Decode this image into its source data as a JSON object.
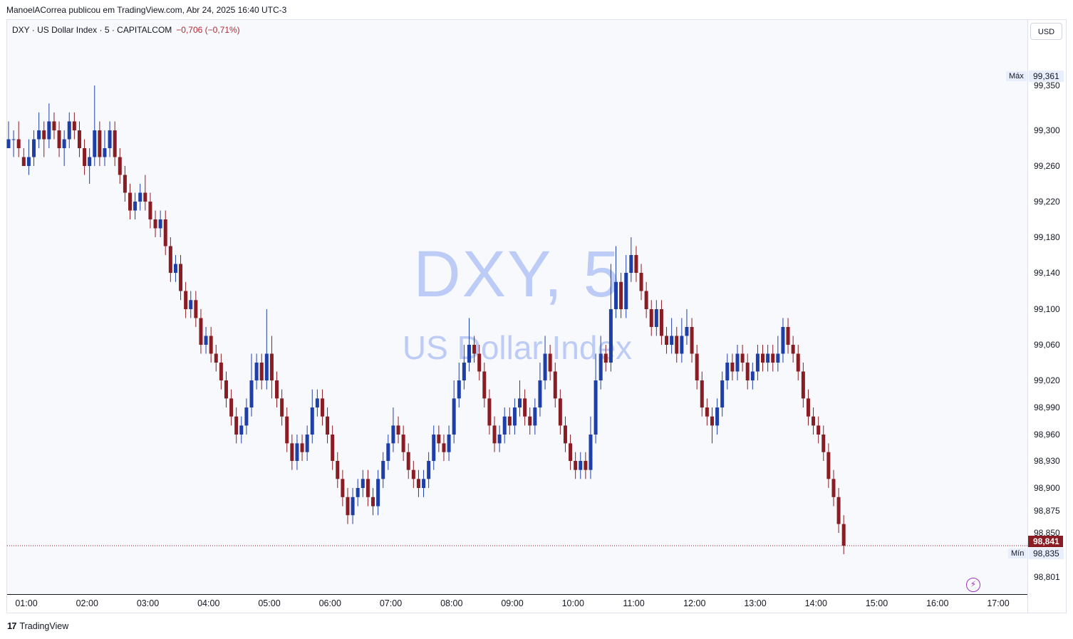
{
  "header": {
    "caption": "ManoelACorrea publicou em TradingView.com, Abr 24, 2025 16:40 UTC-3"
  },
  "legend": {
    "symbol": "DXY · US Dollar Index · 5 · CAPITALCOM",
    "change": "−0,706 (−0,71%)"
  },
  "watermark": {
    "line1": "DXY, 5",
    "line2": "US Dollar Index"
  },
  "price_scale": {
    "currency_button": "USD",
    "max_tag": "Máx",
    "max_value": "99,361",
    "min_tag": "Mín",
    "min_value": "98,835",
    "last_value": "98,841"
  },
  "footer": {
    "brand": "TradingView"
  },
  "colors": {
    "up": "#1f3fa8",
    "down": "#8a1c23",
    "watermark": "#bcccf6",
    "marker": "#a233c2"
  },
  "icons": {
    "lightning": "lightning-icon",
    "brand_logo": "tradingview-logo-icon"
  },
  "chart_data": {
    "type": "candlestick",
    "symbol": "DXY",
    "interval": "5",
    "y_ticks": [
      "99,361",
      "99,350",
      "99,300",
      "99,260",
      "99,220",
      "99,180",
      "99,140",
      "99,100",
      "99,060",
      "99,020",
      "98,990",
      "98,960",
      "98,930",
      "98,900",
      "98,875",
      "98,850",
      "98,835",
      "98,801"
    ],
    "x_ticks": [
      "01:00",
      "02:00",
      "03:00",
      "04:00",
      "05:00",
      "06:00",
      "07:00",
      "08:00",
      "09:00",
      "10:00",
      "11:00",
      "12:00",
      "13:00",
      "14:00",
      "15:00",
      "16:00",
      "17:00"
    ],
    "last_price": 98.841,
    "high": 99.361,
    "low": 98.835,
    "shape": [
      [
        99.28,
        99.29,
        99.31,
        99.29
      ],
      [
        99.29,
        99.29,
        99.3,
        99.27
      ],
      [
        99.29,
        99.28,
        99.31,
        99.27
      ],
      [
        99.27,
        99.26,
        99.28,
        99.26
      ],
      [
        99.26,
        99.27,
        99.29,
        99.25
      ],
      [
        99.27,
        99.29,
        99.3,
        99.26
      ],
      [
        99.29,
        99.3,
        99.32,
        99.28
      ],
      [
        99.3,
        99.29,
        99.31,
        99.27
      ],
      [
        99.29,
        99.31,
        99.33,
        99.28
      ],
      [
        99.31,
        99.3,
        99.32,
        99.29
      ],
      [
        99.3,
        99.28,
        99.31,
        99.27
      ],
      [
        99.28,
        99.29,
        99.3,
        99.26
      ],
      [
        99.29,
        99.31,
        99.32,
        99.28
      ],
      [
        99.31,
        99.3,
        99.32,
        99.29
      ],
      [
        99.3,
        99.28,
        99.31,
        99.27
      ],
      [
        99.28,
        99.26,
        99.29,
        99.25
      ],
      [
        99.26,
        99.27,
        99.28,
        99.24
      ],
      [
        99.27,
        99.3,
        99.35,
        99.26
      ],
      [
        99.3,
        99.27,
        99.31,
        99.26
      ],
      [
        99.27,
        99.28,
        99.3,
        99.26
      ],
      [
        99.28,
        99.3,
        99.31,
        99.27
      ],
      [
        99.3,
        99.27,
        99.31,
        99.26
      ],
      [
        99.27,
        99.25,
        99.28,
        99.24
      ],
      [
        99.25,
        99.23,
        99.26,
        99.22
      ],
      [
        99.23,
        99.21,
        99.24,
        99.2
      ],
      [
        99.21,
        99.22,
        99.23,
        99.2
      ],
      [
        99.22,
        99.23,
        99.24,
        99.21
      ],
      [
        99.23,
        99.22,
        99.25,
        99.21
      ],
      [
        99.22,
        99.2,
        99.23,
        99.19
      ],
      [
        99.2,
        99.19,
        99.21,
        99.18
      ],
      [
        99.19,
        99.2,
        99.21,
        99.18
      ],
      [
        99.2,
        99.17,
        99.21,
        99.16
      ],
      [
        99.17,
        99.14,
        99.18,
        99.13
      ],
      [
        99.14,
        99.15,
        99.16,
        99.13
      ],
      [
        99.15,
        99.12,
        99.16,
        99.11
      ],
      [
        99.12,
        99.1,
        99.13,
        99.09
      ],
      [
        99.1,
        99.11,
        99.12,
        99.09
      ],
      [
        99.11,
        99.09,
        99.12,
        99.08
      ],
      [
        99.09,
        99.06,
        99.1,
        99.05
      ],
      [
        99.06,
        99.07,
        99.08,
        99.05
      ],
      [
        99.07,
        99.05,
        99.08,
        99.04
      ],
      [
        99.05,
        99.04,
        99.06,
        99.03
      ],
      [
        99.04,
        99.02,
        99.05,
        99.01
      ],
      [
        99.02,
        99.0,
        99.03,
        98.99
      ],
      [
        99.0,
        98.98,
        99.01,
        98.97
      ],
      [
        98.98,
        98.96,
        98.99,
        98.95
      ],
      [
        98.96,
        98.97,
        98.98,
        98.95
      ],
      [
        98.97,
        98.99,
        99.0,
        98.96
      ],
      [
        98.99,
        99.02,
        99.05,
        98.98
      ],
      [
        99.02,
        99.04,
        99.05,
        99.01
      ],
      [
        99.04,
        99.02,
        99.05,
        99.01
      ],
      [
        99.02,
        99.05,
        99.1,
        99.01
      ],
      [
        99.05,
        99.02,
        99.07,
        99.0
      ],
      [
        99.02,
        99.0,
        99.03,
        98.99
      ],
      [
        99.0,
        98.98,
        99.01,
        98.97
      ],
      [
        98.98,
        98.95,
        98.99,
        98.94
      ],
      [
        98.95,
        98.93,
        98.96,
        98.92
      ],
      [
        98.93,
        98.95,
        98.96,
        98.92
      ],
      [
        98.95,
        98.94,
        98.96,
        98.93
      ],
      [
        98.94,
        98.96,
        98.97,
        98.93
      ],
      [
        98.96,
        98.99,
        99.01,
        98.95
      ],
      [
        98.99,
        99.0,
        99.01,
        98.98
      ],
      [
        99.0,
        98.98,
        99.01,
        98.97
      ],
      [
        98.98,
        98.96,
        98.99,
        98.95
      ],
      [
        98.96,
        98.93,
        98.97,
        98.92
      ],
      [
        98.93,
        98.91,
        98.94,
        98.9
      ],
      [
        98.91,
        98.89,
        98.92,
        98.88
      ],
      [
        98.89,
        98.87,
        98.9,
        98.86
      ],
      [
        98.87,
        98.89,
        98.9,
        98.86
      ],
      [
        98.89,
        98.9,
        98.91,
        98.88
      ],
      [
        98.9,
        98.91,
        98.92,
        98.89
      ],
      [
        98.91,
        98.89,
        98.92,
        98.88
      ],
      [
        98.89,
        98.88,
        98.9,
        98.87
      ],
      [
        98.88,
        98.91,
        98.92,
        98.87
      ],
      [
        98.91,
        98.93,
        98.94,
        98.9
      ],
      [
        98.93,
        98.95,
        98.96,
        98.92
      ],
      [
        98.95,
        98.97,
        98.99,
        98.94
      ],
      [
        98.97,
        98.96,
        98.98,
        98.95
      ],
      [
        98.96,
        98.94,
        98.97,
        98.93
      ],
      [
        98.94,
        98.92,
        98.95,
        98.91
      ],
      [
        98.92,
        98.91,
        98.93,
        98.9
      ],
      [
        98.91,
        98.9,
        98.92,
        98.89
      ],
      [
        98.9,
        98.91,
        98.92,
        98.89
      ],
      [
        98.91,
        98.93,
        98.94,
        98.9
      ],
      [
        98.93,
        98.96,
        98.97,
        98.92
      ],
      [
        98.96,
        98.95,
        98.97,
        98.94
      ],
      [
        98.95,
        98.94,
        98.96,
        98.93
      ],
      [
        98.94,
        98.96,
        98.97,
        98.93
      ],
      [
        98.96,
        99.0,
        99.02,
        98.95
      ],
      [
        99.0,
        99.02,
        99.04,
        98.99
      ],
      [
        99.02,
        99.04,
        99.06,
        99.01
      ],
      [
        99.04,
        99.06,
        99.09,
        99.03
      ],
      [
        99.06,
        99.05,
        99.07,
        99.04
      ],
      [
        99.05,
        99.03,
        99.06,
        99.02
      ],
      [
        99.03,
        99.0,
        99.04,
        98.99
      ],
      [
        99.0,
        98.97,
        99.01,
        98.96
      ],
      [
        98.97,
        98.95,
        98.98,
        98.94
      ],
      [
        98.95,
        98.96,
        98.97,
        98.94
      ],
      [
        98.96,
        98.98,
        98.99,
        98.95
      ],
      [
        98.98,
        98.97,
        98.99,
        98.96
      ],
      [
        98.97,
        98.99,
        99.0,
        98.96
      ],
      [
        98.99,
        99.0,
        99.02,
        98.98
      ],
      [
        99.0,
        98.98,
        99.01,
        98.97
      ],
      [
        98.98,
        98.97,
        98.99,
        98.96
      ],
      [
        98.97,
        98.99,
        99.0,
        98.96
      ],
      [
        98.99,
        99.02,
        99.04,
        98.98
      ],
      [
        99.02,
        99.05,
        99.07,
        99.01
      ],
      [
        99.05,
        99.03,
        99.06,
        99.02
      ],
      [
        99.03,
        99.0,
        99.04,
        98.99
      ],
      [
        99.0,
        98.97,
        99.01,
        98.96
      ],
      [
        98.97,
        98.95,
        98.98,
        98.94
      ],
      [
        98.95,
        98.93,
        98.96,
        98.92
      ],
      [
        98.93,
        98.92,
        98.94,
        98.91
      ],
      [
        98.92,
        98.93,
        98.94,
        98.91
      ],
      [
        98.93,
        98.92,
        98.94,
        98.91
      ],
      [
        98.92,
        98.96,
        98.98,
        98.91
      ],
      [
        98.96,
        99.02,
        99.05,
        98.95
      ],
      [
        99.02,
        99.05,
        99.07,
        99.01
      ],
      [
        99.05,
        99.04,
        99.06,
        99.03
      ],
      [
        99.04,
        99.1,
        99.15,
        99.03
      ],
      [
        99.1,
        99.13,
        99.17,
        99.09
      ],
      [
        99.13,
        99.1,
        99.14,
        99.09
      ],
      [
        99.1,
        99.14,
        99.16,
        99.09
      ],
      [
        99.14,
        99.16,
        99.18,
        99.13
      ],
      [
        99.16,
        99.14,
        99.17,
        99.13
      ],
      [
        99.14,
        99.12,
        99.15,
        99.11
      ],
      [
        99.12,
        99.1,
        99.13,
        99.09
      ],
      [
        99.1,
        99.08,
        99.11,
        99.07
      ],
      [
        99.08,
        99.1,
        99.11,
        99.07
      ],
      [
        99.1,
        99.07,
        99.11,
        99.06
      ],
      [
        99.07,
        99.06,
        99.08,
        99.05
      ],
      [
        99.06,
        99.07,
        99.09,
        99.05
      ],
      [
        99.07,
        99.05,
        99.08,
        99.04
      ],
      [
        99.05,
        99.07,
        99.09,
        99.04
      ],
      [
        99.07,
        99.08,
        99.1,
        99.06
      ],
      [
        99.08,
        99.05,
        99.09,
        99.04
      ],
      [
        99.05,
        99.02,
        99.06,
        99.01
      ],
      [
        99.02,
        98.99,
        99.03,
        98.98
      ],
      [
        98.99,
        98.98,
        99.0,
        98.97
      ],
      [
        98.98,
        98.97,
        98.99,
        98.95
      ],
      [
        98.97,
        98.99,
        99.0,
        98.96
      ],
      [
        98.99,
        99.02,
        99.03,
        98.98
      ],
      [
        99.02,
        99.04,
        99.05,
        99.01
      ],
      [
        99.04,
        99.03,
        99.05,
        99.02
      ],
      [
        99.03,
        99.05,
        99.06,
        99.02
      ],
      [
        99.05,
        99.04,
        99.06,
        99.03
      ],
      [
        99.04,
        99.02,
        99.05,
        99.01
      ],
      [
        99.02,
        99.03,
        99.04,
        99.01
      ],
      [
        99.03,
        99.05,
        99.06,
        99.02
      ],
      [
        99.05,
        99.04,
        99.06,
        99.03
      ],
      [
        99.04,
        99.05,
        99.06,
        99.03
      ],
      [
        99.05,
        99.04,
        99.06,
        99.03
      ],
      [
        99.04,
        99.05,
        99.07,
        99.03
      ],
      [
        99.05,
        99.08,
        99.09,
        99.04
      ],
      [
        99.08,
        99.06,
        99.09,
        99.05
      ],
      [
        99.06,
        99.05,
        99.07,
        99.04
      ],
      [
        99.05,
        99.03,
        99.06,
        99.02
      ],
      [
        99.03,
        99.0,
        99.04,
        98.99
      ],
      [
        99.0,
        98.98,
        99.01,
        98.97
      ],
      [
        98.98,
        98.97,
        98.99,
        98.96
      ],
      [
        98.97,
        98.96,
        98.98,
        98.95
      ],
      [
        98.96,
        98.94,
        98.97,
        98.93
      ],
      [
        98.94,
        98.91,
        98.95,
        98.9
      ],
      [
        98.91,
        98.89,
        98.92,
        98.88
      ],
      [
        98.89,
        98.86,
        98.9,
        98.85
      ],
      [
        98.86,
        98.841,
        98.87,
        98.835
      ]
    ]
  }
}
